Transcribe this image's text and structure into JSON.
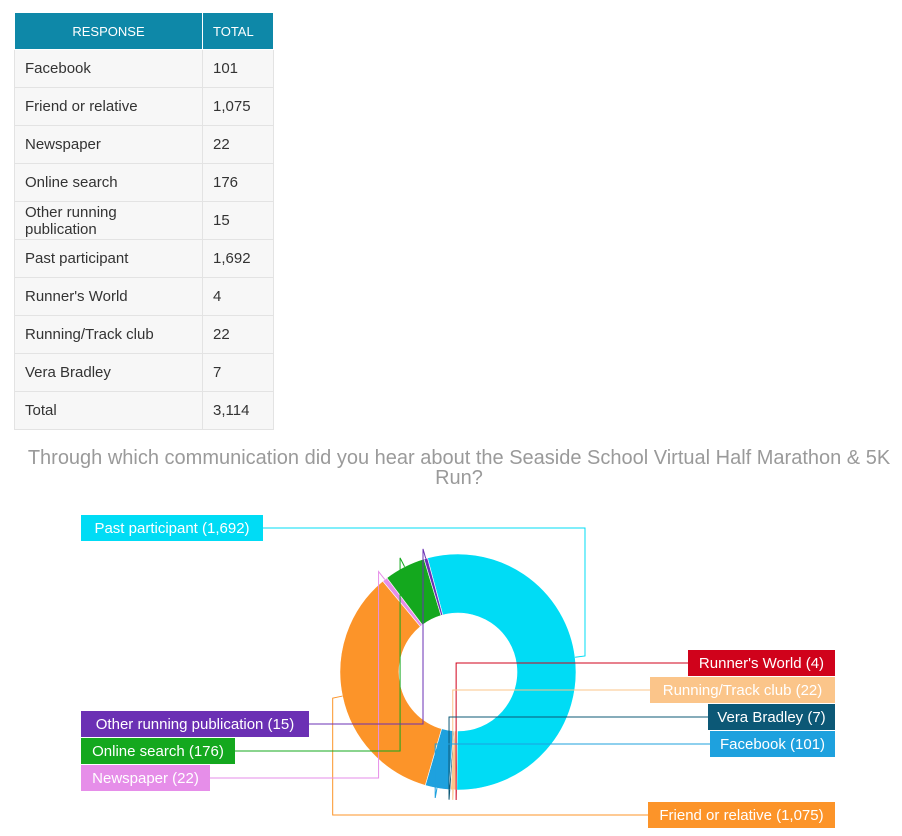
{
  "table": {
    "headers": [
      "RESPONSE",
      "TOTAL"
    ],
    "rows": [
      {
        "response": "Facebook",
        "total": "101"
      },
      {
        "response": "Friend or relative",
        "total": "1,075"
      },
      {
        "response": "Newspaper",
        "total": "22"
      },
      {
        "response": "Online search",
        "total": "176"
      },
      {
        "response": "Other running publication",
        "total": "15"
      },
      {
        "response": "Past participant",
        "total": "1,692"
      },
      {
        "response": "Runner's World",
        "total": "4"
      },
      {
        "response": "Running/Track club",
        "total": "22"
      },
      {
        "response": "Vera Bradley",
        "total": "7"
      },
      {
        "response": "Total",
        "total": "3,114"
      }
    ]
  },
  "chart_data": {
    "type": "pie",
    "title": "Through which communication did you hear about the Seaside School Virtual Half Marathon & 5K Run?",
    "donut": true,
    "slices": [
      {
        "label": "Past participant",
        "value": 1692,
        "display": "Past participant (1,692)",
        "color": "#00dcf5",
        "text_color": "#ffffff"
      },
      {
        "label": "Runner's World",
        "value": 4,
        "display": "Runner's World (4)",
        "color": "#d0021b",
        "text_color": "#ffffff"
      },
      {
        "label": "Running/Track club",
        "value": 22,
        "display": "Running/Track club (22)",
        "color": "#fbc58a",
        "text_color": "#ffffff"
      },
      {
        "label": "Vera Bradley",
        "value": 7,
        "display": "Vera Bradley (7)",
        "color": "#0c5876",
        "text_color": "#ffffff"
      },
      {
        "label": "Facebook",
        "value": 101,
        "display": "Facebook (101)",
        "color": "#1ea1de",
        "text_color": "#ffffff"
      },
      {
        "label": "Friend or relative",
        "value": 1075,
        "display": "Friend or relative (1,075)",
        "color": "#fc9429",
        "text_color": "#ffffff"
      },
      {
        "label": "Newspaper",
        "value": 22,
        "display": "Newspaper (22)",
        "color": "#e68ee9",
        "text_color": "#ffffff"
      },
      {
        "label": "Online search",
        "value": 176,
        "display": "Online search (176)",
        "color": "#14a81e",
        "text_color": "#ffffff"
      },
      {
        "label": "Other running publication",
        "value": 15,
        "display": "Other running publication (15)",
        "color": "#6b30b4",
        "text_color": "#ffffff"
      }
    ]
  }
}
